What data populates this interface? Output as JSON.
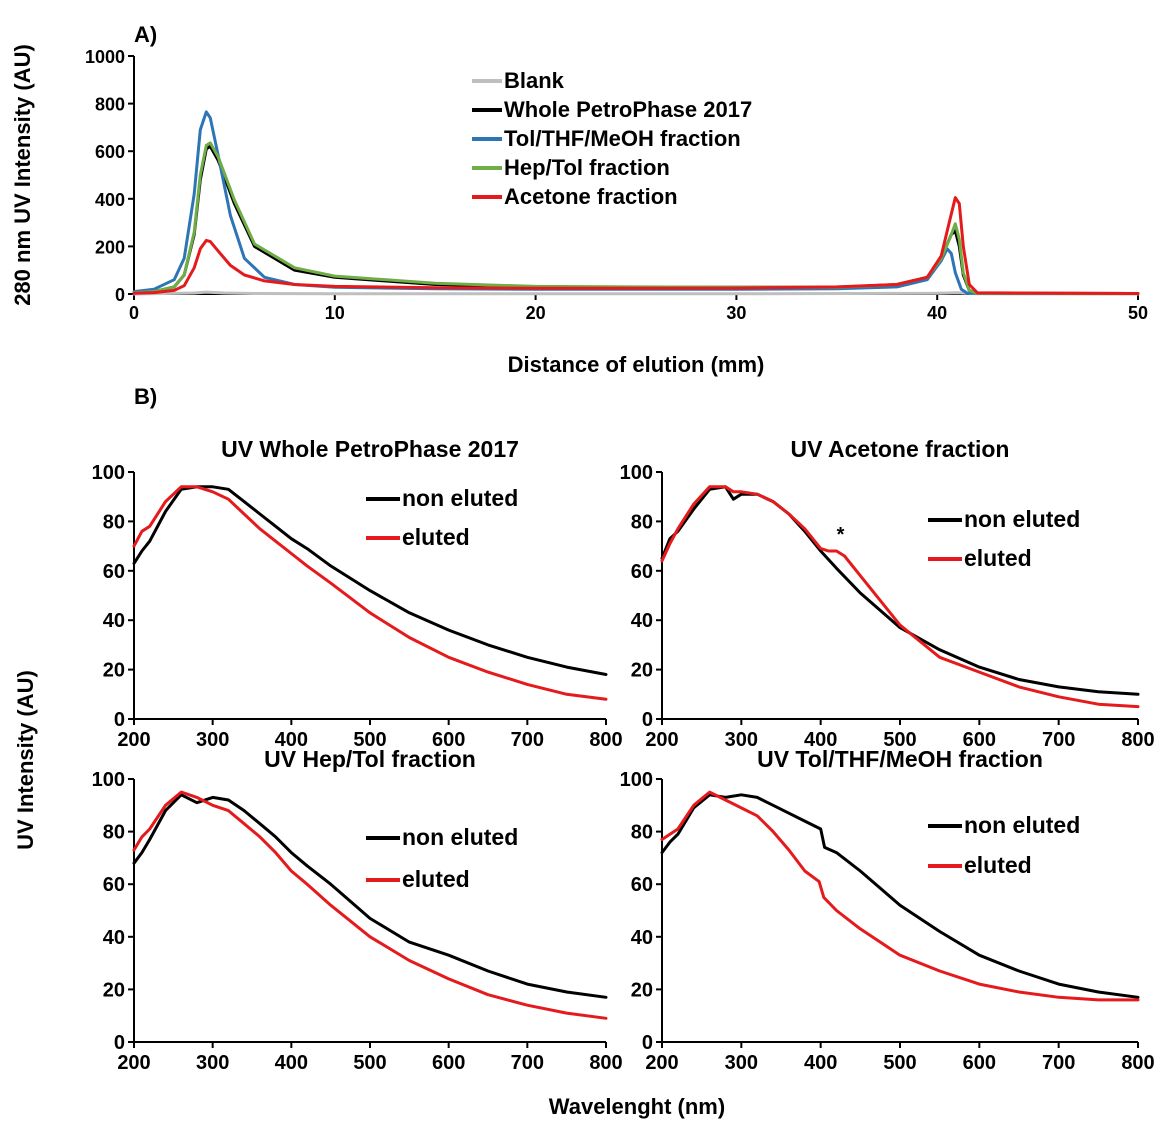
{
  "panel_a_label": "A)",
  "panel_b_label": "B)",
  "shared_ylabel": "UV Intensity (AU)",
  "shared_xlabel": "Wavelenght (nm)",
  "chart_data": [
    {
      "type": "line",
      "panel": "A",
      "title": "",
      "xlabel": "Distance of elution (mm)",
      "ylabel": "280 nm UV Intensity (AU)",
      "xlim": [
        0,
        50
      ],
      "ylim": [
        0,
        1000
      ],
      "xticks": [
        0,
        10,
        20,
        30,
        40,
        50
      ],
      "yticks": [
        0,
        200,
        400,
        600,
        800,
        1000
      ],
      "legend_position": "top-center",
      "series": [
        {
          "name": "Blank",
          "color": "#bfbfbf",
          "x": [
            0,
            3,
            3.6,
            4.5,
            6,
            10,
            20,
            30,
            40,
            41,
            42,
            50
          ],
          "y": [
            0,
            4,
            8,
            4,
            2,
            1,
            1,
            1,
            3,
            5,
            1,
            0
          ]
        },
        {
          "name": "Whole PetroPhase 2017",
          "color": "#000000",
          "x": [
            0,
            1,
            2,
            2.5,
            3,
            3.3,
            3.6,
            3.8,
            4.2,
            5,
            6,
            8,
            10,
            15,
            20,
            25,
            30,
            35,
            38,
            39.5,
            40.2,
            40.7,
            40.9,
            41.1,
            41.3,
            41.6,
            42,
            50
          ],
          "y": [
            5,
            10,
            30,
            80,
            250,
            480,
            610,
            620,
            560,
            380,
            200,
            100,
            70,
            40,
            30,
            28,
            28,
            28,
            40,
            70,
            150,
            250,
            265,
            200,
            80,
            15,
            3,
            2
          ]
        },
        {
          "name": "Tol/THF/MeOH fraction",
          "color": "#2e75b6",
          "x": [
            0,
            1,
            2,
            2.5,
            3,
            3.3,
            3.6,
            3.8,
            4.2,
            4.8,
            5.5,
            6.5,
            8,
            10,
            15,
            20,
            25,
            30,
            35,
            38,
            39.5,
            40.2,
            40.5,
            40.7,
            40.9,
            41.2,
            41.5,
            50
          ],
          "y": [
            10,
            20,
            60,
            150,
            420,
            690,
            765,
            740,
            580,
            330,
            150,
            70,
            40,
            28,
            22,
            20,
            20,
            20,
            22,
            30,
            60,
            140,
            190,
            170,
            90,
            20,
            3,
            2
          ]
        },
        {
          "name": "Hep/Tol fraction",
          "color": "#70ad47",
          "x": [
            0,
            1,
            2,
            2.5,
            3,
            3.3,
            3.6,
            3.8,
            4.2,
            5,
            6,
            8,
            10,
            15,
            20,
            25,
            30,
            35,
            38,
            39.5,
            40.2,
            40.7,
            40.9,
            41.1,
            41.3,
            41.6,
            42,
            50
          ],
          "y": [
            5,
            10,
            30,
            80,
            260,
            500,
            625,
            635,
            575,
            395,
            210,
            110,
            75,
            45,
            32,
            30,
            28,
            28,
            40,
            70,
            150,
            250,
            295,
            230,
            90,
            15,
            3,
            2
          ]
        },
        {
          "name": "Acetone fraction",
          "color": "#e41a1c",
          "x": [
            0,
            1,
            2,
            2.5,
            3,
            3.3,
            3.6,
            3.8,
            4.2,
            4.8,
            5.5,
            6.5,
            8,
            10,
            15,
            20,
            25,
            30,
            35,
            38,
            39.5,
            40.2,
            40.6,
            40.9,
            41.1,
            41.3,
            41.6,
            42,
            50
          ],
          "y": [
            3,
            6,
            15,
            35,
            110,
            190,
            225,
            220,
            180,
            120,
            80,
            55,
            40,
            32,
            26,
            24,
            24,
            25,
            30,
            40,
            70,
            160,
            300,
            405,
            380,
            200,
            40,
            5,
            2
          ]
        }
      ]
    },
    {
      "type": "line",
      "panel": "B",
      "title": "UV Whole PetroPhase 2017",
      "xlim": [
        200,
        800
      ],
      "ylim": [
        0,
        100
      ],
      "xticks": [
        200,
        300,
        400,
        500,
        600,
        700,
        800
      ],
      "yticks": [
        0,
        20,
        40,
        60,
        80,
        100
      ],
      "legend_position": "top-right",
      "series": [
        {
          "name": "non eluted",
          "color": "#000000",
          "x": [
            200,
            210,
            220,
            240,
            260,
            280,
            300,
            320,
            340,
            360,
            380,
            400,
            420,
            450,
            500,
            550,
            600,
            650,
            700,
            750,
            800
          ],
          "y": [
            63,
            68,
            72,
            84,
            93,
            94,
            94,
            93,
            88,
            83,
            78,
            73,
            69,
            62,
            52,
            43,
            36,
            30,
            25,
            21,
            18
          ]
        },
        {
          "name": "eluted",
          "color": "#e41a1c",
          "x": [
            200,
            210,
            220,
            240,
            260,
            280,
            300,
            320,
            340,
            360,
            380,
            400,
            420,
            450,
            500,
            550,
            600,
            650,
            700,
            750,
            800
          ],
          "y": [
            70,
            76,
            78,
            88,
            94,
            94,
            92,
            89,
            83,
            77,
            72,
            67,
            62,
            55,
            43,
            33,
            25,
            19,
            14,
            10,
            8
          ]
        }
      ]
    },
    {
      "type": "line",
      "panel": "B",
      "title": "UV Acetone fraction",
      "xlim": [
        200,
        800
      ],
      "ylim": [
        0,
        100
      ],
      "xticks": [
        200,
        300,
        400,
        500,
        600,
        700,
        800
      ],
      "yticks": [
        0,
        20,
        40,
        60,
        80,
        100
      ],
      "legend_position": "right",
      "annotation": "*",
      "series": [
        {
          "name": "non eluted",
          "color": "#000000",
          "x": [
            200,
            210,
            220,
            240,
            260,
            280,
            290,
            300,
            320,
            340,
            360,
            380,
            400,
            420,
            450,
            500,
            550,
            600,
            650,
            700,
            750,
            800
          ],
          "y": [
            65,
            73,
            76,
            85,
            93,
            94,
            89,
            91,
            91,
            88,
            83,
            76,
            68,
            61,
            51,
            37,
            28,
            21,
            16,
            13,
            11,
            10
          ]
        },
        {
          "name": "eluted",
          "color": "#e41a1c",
          "x": [
            200,
            210,
            220,
            240,
            260,
            280,
            290,
            300,
            320,
            340,
            360,
            380,
            400,
            410,
            420,
            430,
            450,
            500,
            550,
            600,
            650,
            700,
            750,
            800
          ],
          "y": [
            64,
            71,
            77,
            87,
            94,
            94,
            92,
            92,
            91,
            88,
            83,
            77,
            69,
            68,
            68,
            66,
            58,
            38,
            25,
            19,
            13,
            9,
            6,
            5
          ]
        }
      ]
    },
    {
      "type": "line",
      "panel": "B",
      "title": "UV Hep/Tol fraction",
      "xlim": [
        200,
        800
      ],
      "ylim": [
        0,
        100
      ],
      "xticks": [
        200,
        300,
        400,
        500,
        600,
        700,
        800
      ],
      "yticks": [
        0,
        20,
        40,
        60,
        80,
        100
      ],
      "legend_position": "right",
      "series": [
        {
          "name": "non eluted",
          "color": "#000000",
          "x": [
            200,
            210,
            220,
            240,
            260,
            280,
            300,
            320,
            340,
            360,
            380,
            400,
            420,
            450,
            500,
            550,
            600,
            650,
            700,
            750,
            800
          ],
          "y": [
            68,
            72,
            77,
            88,
            94,
            91,
            93,
            92,
            88,
            83,
            78,
            72,
            67,
            60,
            47,
            38,
            33,
            27,
            22,
            19,
            17
          ]
        },
        {
          "name": "eluted",
          "color": "#e41a1c",
          "x": [
            200,
            210,
            220,
            240,
            260,
            280,
            300,
            320,
            340,
            360,
            380,
            400,
            420,
            450,
            500,
            550,
            600,
            650,
            700,
            750,
            800
          ],
          "y": [
            73,
            78,
            81,
            90,
            95,
            93,
            90,
            88,
            83,
            78,
            72,
            65,
            60,
            52,
            40,
            31,
            24,
            18,
            14,
            11,
            9
          ]
        }
      ]
    },
    {
      "type": "line",
      "panel": "B",
      "title": "UV Tol/THF/MeOH fraction",
      "xlim": [
        200,
        800
      ],
      "ylim": [
        0,
        100
      ],
      "xticks": [
        200,
        300,
        400,
        500,
        600,
        700,
        800
      ],
      "yticks": [
        0,
        20,
        40,
        60,
        80,
        100
      ],
      "legend_position": "right",
      "series": [
        {
          "name": "non eluted",
          "color": "#000000",
          "x": [
            200,
            210,
            220,
            240,
            260,
            280,
            300,
            320,
            340,
            360,
            380,
            400,
            405,
            420,
            450,
            500,
            550,
            600,
            650,
            700,
            750,
            800
          ],
          "y": [
            72,
            76,
            79,
            89,
            94,
            93,
            94,
            93,
            90,
            87,
            84,
            81,
            74,
            72,
            65,
            52,
            42,
            33,
            27,
            22,
            19,
            17
          ]
        },
        {
          "name": "eluted",
          "color": "#e41a1c",
          "x": [
            200,
            210,
            220,
            240,
            260,
            280,
            300,
            320,
            340,
            360,
            380,
            398,
            404,
            420,
            450,
            500,
            550,
            600,
            650,
            700,
            750,
            800
          ],
          "y": [
            77,
            79,
            81,
            90,
            95,
            92,
            89,
            86,
            80,
            73,
            65,
            61,
            55,
            50,
            43,
            33,
            27,
            22,
            19,
            17,
            16,
            16
          ]
        }
      ]
    }
  ]
}
